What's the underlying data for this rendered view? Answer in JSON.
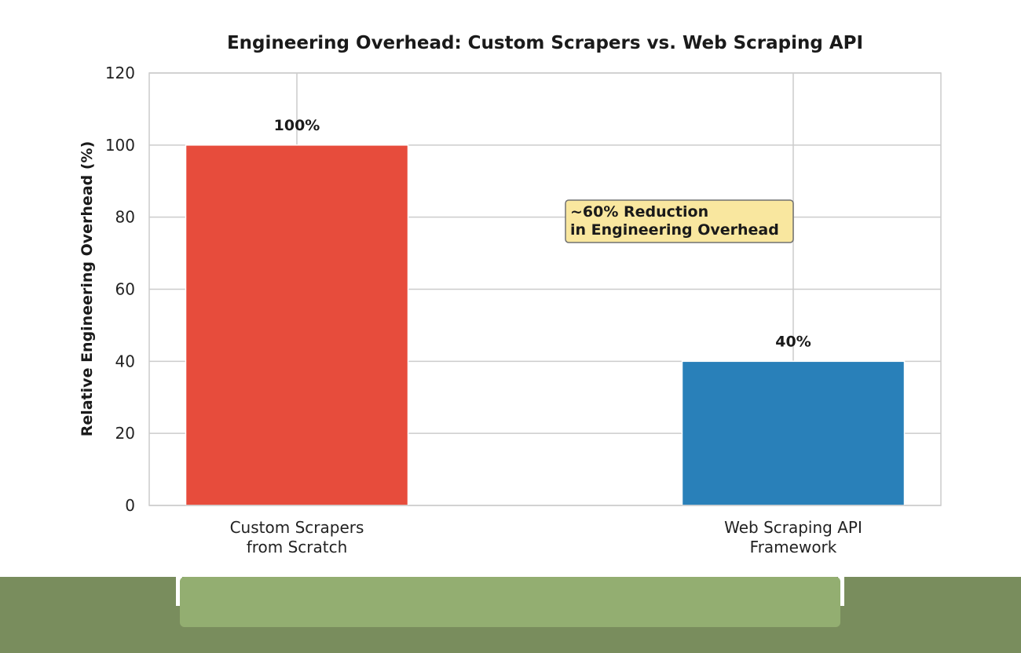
{
  "chart_data": {
    "type": "bar",
    "title": "Engineering Overhead: Custom Scrapers vs. Web Scraping API",
    "xlabel": "",
    "ylabel": "Relative Engineering Overhead (%)",
    "categories": [
      [
        "Custom Scrapers",
        "from Scratch"
      ],
      [
        "Web Scraping API",
        "Framework"
      ]
    ],
    "values": [
      100,
      40
    ],
    "data_labels": [
      "100%",
      "40%"
    ],
    "colors": [
      "#e74c3c",
      "#2980b9"
    ],
    "ylim": [
      0,
      120
    ],
    "yticks": [
      "0",
      "20",
      "40",
      "60",
      "80",
      "100",
      "120"
    ],
    "ytick_values": [
      0,
      20,
      40,
      60,
      80,
      100,
      120
    ],
    "grid": true,
    "annotation": {
      "lines": [
        "~60% Reduction",
        "in Engineering Overhead"
      ],
      "background": "#f9e79f",
      "border": "#707070"
    }
  }
}
